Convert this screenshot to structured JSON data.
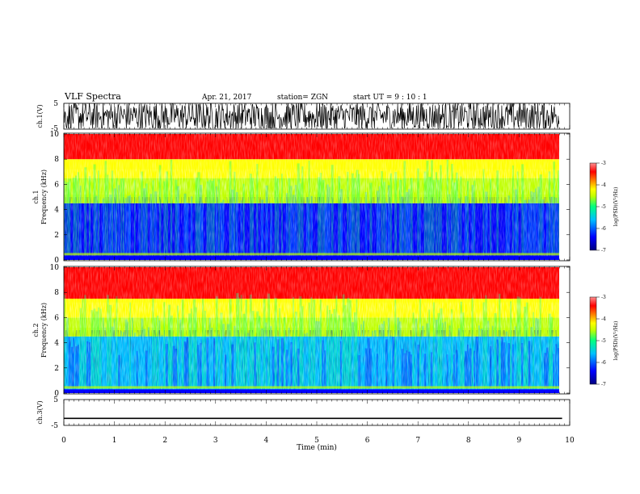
{
  "header": {
    "title": "VLF Spectra",
    "date": "Apr. 21, 2017",
    "station": "station= ZGN",
    "start": "start  UT  =   9 : 10 : 1"
  },
  "chart_data": [
    {
      "type": "line",
      "panel": "ch1-waveform",
      "ylabel": "ch.1(V)",
      "ylim": [
        -5,
        5
      ],
      "yticks": [
        "5",
        "-5"
      ],
      "xlim": [
        0,
        10
      ],
      "grid": false,
      "description_of_signal": "dense broadband noise, saturated near +/-5 V",
      "series": [
        {
          "values_range": [
            -5,
            5
          ]
        }
      ]
    },
    {
      "type": "heatmap",
      "panel": "ch1-spectrogram",
      "ylabel": "ch.1\nFrequency (kHz)",
      "ylabel_line1": "ch.1",
      "ylabel_line2": "Frequency (kHz)",
      "ylim": [
        0,
        10
      ],
      "yticks": [
        "0",
        "2",
        "4",
        "6",
        "8",
        "10"
      ],
      "xlim": [
        0,
        10
      ],
      "colorbar": {
        "label": "log(PSD)(V²/Hz)",
        "range": [
          -7,
          -3
        ],
        "ticks": [
          "-3",
          "-4",
          "-5",
          "-6",
          "-7"
        ]
      },
      "data_end_min": 9.85,
      "bands": [
        {
          "freq_khz": [
            0,
            4.5
          ],
          "log_psd": -6.3
        },
        {
          "freq_khz": [
            4.5,
            6.5
          ],
          "log_psd": -5.2
        },
        {
          "freq_khz": [
            6.5,
            8
          ],
          "log_psd": -4.3
        },
        {
          "freq_khz": [
            8,
            10
          ],
          "log_psd": -3.6
        }
      ]
    },
    {
      "type": "heatmap",
      "panel": "ch2-spectrogram",
      "ylabel_line1": "ch.2",
      "ylabel_line2": "Frequency (kHz)",
      "ylim": [
        0,
        10
      ],
      "yticks": [
        "0",
        "2",
        "4",
        "6",
        "8",
        "10"
      ],
      "xlim": [
        0,
        10
      ],
      "colorbar": {
        "label": "log(PSD)(V²/Hz)",
        "range": [
          -7,
          -3
        ],
        "ticks": [
          "-3",
          "-4",
          "-5",
          "-6",
          "-7"
        ]
      },
      "data_end_min": 9.85,
      "bands": [
        {
          "freq_khz": [
            0,
            4.5
          ],
          "log_psd": -6.2
        },
        {
          "freq_khz": [
            4.5,
            6
          ],
          "log_psd": -5.2
        },
        {
          "freq_khz": [
            6,
            7.5
          ],
          "log_psd": -4.3
        },
        {
          "freq_khz": [
            7.5,
            10
          ],
          "log_psd": -3.3
        }
      ]
    },
    {
      "type": "line",
      "panel": "ch3-waveform",
      "ylabel": "ch.3(V)",
      "ylim": [
        -5,
        5
      ],
      "yticks": [
        "5",
        "-5"
      ],
      "xlabel": "Time  (min)",
      "xlim": [
        0,
        10
      ],
      "xticks": [
        "0",
        "1",
        "2",
        "3",
        "4",
        "5",
        "6",
        "7",
        "8",
        "9",
        "10"
      ],
      "series": [
        {
          "constant_value": -2.3,
          "x_range": [
            0,
            9.85
          ]
        }
      ]
    }
  ],
  "colors": {
    "scale": [
      "#000080",
      "#0000ff",
      "#00c0ff",
      "#00ff80",
      "#c0ff00",
      "#ffff00",
      "#ff8000",
      "#ff0000",
      "#ff8080"
    ]
  }
}
